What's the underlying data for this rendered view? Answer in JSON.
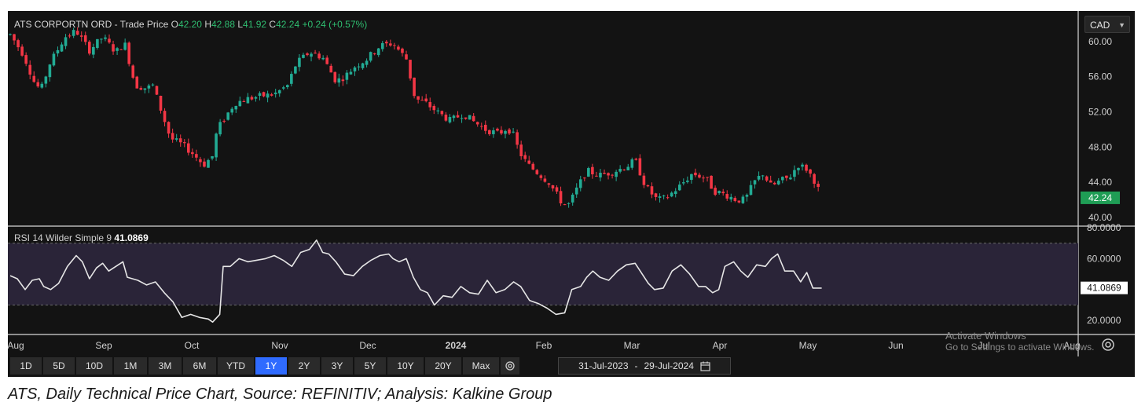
{
  "header": {
    "title": "ATS CORPORTN ORD - Trade Price",
    "o_label": "O",
    "o_value": "42.20",
    "h_label": "H",
    "h_value": "42.88",
    "l_label": "L",
    "l_value": "41.92",
    "c_label": "C",
    "c_value": "42.24",
    "change": "+0.24 (+0.57%)"
  },
  "currency": {
    "value": "CAD"
  },
  "rsi": {
    "title": "RSI 14 Wilder Simple 9",
    "value": "41.0869"
  },
  "range_buttons": [
    "1D",
    "5D",
    "10D",
    "1M",
    "3M",
    "6M",
    "YTD",
    "1Y",
    "2Y",
    "3Y",
    "5Y",
    "10Y",
    "20Y",
    "Max"
  ],
  "active_range": "1Y",
  "date_range": {
    "start": "31-Jul-2023",
    "sep": "-",
    "end": "29-Jul-2024"
  },
  "watermark": {
    "line1": "Activate Windows",
    "line2": "Go to Settings to activate Windows."
  },
  "caption": "ATS, Daily Technical Price Chart, Source: REFINITIV; Analysis: Kalkine Group",
  "colors": {
    "up": "#22ab94",
    "down": "#f23645",
    "rsi_line": "#e6e6e6",
    "rsi_band": "#2a2438",
    "active": "#2f6bff"
  },
  "chart_data": {
    "type": "candlestick",
    "price_axis": {
      "ticks": [
        "60.00",
        "56.00",
        "52.00",
        "48.00",
        "44.00",
        "40.00"
      ],
      "ylim": [
        39.2,
        61.5
      ],
      "last_price": "42.24"
    },
    "rsi_axis": {
      "ticks": [
        "80.0000",
        "60.0000",
        "20.0000"
      ],
      "ylim": [
        12,
        80
      ],
      "bands": [
        70,
        30
      ],
      "last_value": "41.0869"
    },
    "time_axis": [
      {
        "label": "Aug",
        "month": 0
      },
      {
        "label": "Sep",
        "month": 1
      },
      {
        "label": "Oct",
        "month": 2
      },
      {
        "label": "Nov",
        "month": 3
      },
      {
        "label": "Dec",
        "month": 4
      },
      {
        "label": "2024",
        "month": 5,
        "bold": true
      },
      {
        "label": "Feb",
        "month": 6
      },
      {
        "label": "Mar",
        "month": 7
      },
      {
        "label": "Apr",
        "month": 8
      },
      {
        "label": "May",
        "month": 9
      },
      {
        "label": "Jun",
        "month": 10
      },
      {
        "label": "Jul",
        "month": 11
      },
      {
        "label": "Aug",
        "month": 12
      }
    ],
    "price_path": [
      [
        0,
        60.8
      ],
      [
        0.15,
        58.5
      ],
      [
        0.28,
        55.2
      ],
      [
        0.35,
        54.5
      ],
      [
        0.45,
        57.5
      ],
      [
        0.62,
        60.5
      ],
      [
        0.75,
        61.2
      ],
      [
        0.9,
        59.0
      ],
      [
        1.05,
        60.5
      ],
      [
        1.2,
        58.8
      ],
      [
        1.3,
        59.8
      ],
      [
        1.42,
        55.0
      ],
      [
        1.55,
        54.7
      ],
      [
        1.62,
        55.0
      ],
      [
        1.72,
        52.0
      ],
      [
        1.82,
        49.0
      ],
      [
        1.95,
        48.3
      ],
      [
        2.05,
        47.5
      ],
      [
        2.2,
        46.0
      ],
      [
        2.3,
        47.0
      ],
      [
        2.35,
        50.0
      ],
      [
        2.45,
        51.5
      ],
      [
        2.55,
        53.0
      ],
      [
        2.7,
        53.5
      ],
      [
        2.85,
        53.8
      ],
      [
        3.0,
        54.0
      ],
      [
        3.15,
        55.0
      ],
      [
        3.25,
        57.5
      ],
      [
        3.4,
        58.8
      ],
      [
        3.55,
        58.2
      ],
      [
        3.7,
        55.5
      ],
      [
        3.8,
        56.0
      ],
      [
        3.92,
        57.2
      ],
      [
        4.05,
        58.0
      ],
      [
        4.2,
        59.5
      ],
      [
        4.35,
        59.8
      ],
      [
        4.5,
        58.0
      ],
      [
        4.6,
        53.5
      ],
      [
        4.72,
        53.0
      ],
      [
        4.85,
        52.0
      ],
      [
        5.0,
        51.0
      ],
      [
        5.15,
        51.8
      ],
      [
        5.25,
        51.0
      ],
      [
        5.4,
        50.0
      ],
      [
        5.55,
        49.5
      ],
      [
        5.65,
        50.2
      ],
      [
        5.72,
        49.3
      ],
      [
        5.78,
        47.5
      ],
      [
        5.88,
        46.0
      ],
      [
        6.0,
        45.0
      ],
      [
        6.12,
        44.0
      ],
      [
        6.28,
        41.5
      ],
      [
        6.35,
        41.5
      ],
      [
        6.45,
        43.5
      ],
      [
        6.55,
        45.3
      ],
      [
        6.7,
        44.8
      ],
      [
        6.85,
        45.2
      ],
      [
        7.0,
        45.8
      ],
      [
        7.1,
        46.5
      ],
      [
        7.22,
        43.5
      ],
      [
        7.35,
        42.0
      ],
      [
        7.45,
        42.2
      ],
      [
        7.6,
        43.5
      ],
      [
        7.75,
        45.0
      ],
      [
        7.9,
        44.5
      ],
      [
        8.0,
        43.0
      ],
      [
        8.15,
        42.5
      ],
      [
        8.25,
        42.0
      ],
      [
        8.35,
        42.0
      ],
      [
        8.45,
        44.0
      ],
      [
        8.55,
        45.0
      ],
      [
        8.65,
        43.5
      ],
      [
        8.75,
        44.2
      ],
      [
        8.85,
        44.5
      ],
      [
        8.95,
        46.0
      ],
      [
        9.05,
        45.5
      ],
      [
        9.15,
        44.0
      ],
      [
        9.22,
        42.2
      ]
    ],
    "rsi_path": [
      [
        0,
        49
      ],
      [
        0.08,
        47
      ],
      [
        0.17,
        40
      ],
      [
        0.25,
        46
      ],
      [
        0.33,
        47
      ],
      [
        0.38,
        42
      ],
      [
        0.46,
        40
      ],
      [
        0.55,
        44
      ],
      [
        0.65,
        55
      ],
      [
        0.75,
        62
      ],
      [
        0.82,
        58
      ],
      [
        0.9,
        47
      ],
      [
        0.98,
        54
      ],
      [
        1.05,
        57
      ],
      [
        1.12,
        52
      ],
      [
        1.2,
        55
      ],
      [
        1.28,
        58
      ],
      [
        1.33,
        48
      ],
      [
        1.45,
        46
      ],
      [
        1.55,
        43
      ],
      [
        1.65,
        45
      ],
      [
        1.75,
        38
      ],
      [
        1.85,
        32
      ],
      [
        1.95,
        22
      ],
      [
        2.05,
        24
      ],
      [
        2.15,
        22
      ],
      [
        2.25,
        21
      ],
      [
        2.3,
        19
      ],
      [
        2.38,
        24
      ],
      [
        2.42,
        55
      ],
      [
        2.5,
        55
      ],
      [
        2.6,
        60
      ],
      [
        2.7,
        58
      ],
      [
        2.8,
        59
      ],
      [
        2.9,
        60
      ],
      [
        3.0,
        62
      ],
      [
        3.1,
        59
      ],
      [
        3.2,
        55
      ],
      [
        3.3,
        64
      ],
      [
        3.4,
        66
      ],
      [
        3.48,
        72
      ],
      [
        3.55,
        64
      ],
      [
        3.62,
        63
      ],
      [
        3.7,
        58
      ],
      [
        3.8,
        50
      ],
      [
        3.9,
        49
      ],
      [
        4.0,
        55
      ],
      [
        4.1,
        59
      ],
      [
        4.2,
        62
      ],
      [
        4.3,
        63
      ],
      [
        4.35,
        60
      ],
      [
        4.42,
        58
      ],
      [
        4.5,
        60
      ],
      [
        4.58,
        48
      ],
      [
        4.66,
        40
      ],
      [
        4.74,
        38
      ],
      [
        4.82,
        30
      ],
      [
        4.92,
        36
      ],
      [
        5.02,
        35
      ],
      [
        5.12,
        42
      ],
      [
        5.22,
        38
      ],
      [
        5.32,
        37
      ],
      [
        5.42,
        46
      ],
      [
        5.52,
        38
      ],
      [
        5.62,
        40
      ],
      [
        5.72,
        45
      ],
      [
        5.8,
        42
      ],
      [
        5.9,
        33
      ],
      [
        6.0,
        31
      ],
      [
        6.1,
        28
      ],
      [
        6.2,
        24
      ],
      [
        6.3,
        25
      ],
      [
        6.38,
        40
      ],
      [
        6.48,
        42
      ],
      [
        6.55,
        48
      ],
      [
        6.62,
        52
      ],
      [
        6.7,
        48
      ],
      [
        6.8,
        46
      ],
      [
        6.9,
        52
      ],
      [
        7.0,
        56
      ],
      [
        7.1,
        57
      ],
      [
        7.18,
        50
      ],
      [
        7.25,
        44
      ],
      [
        7.32,
        40
      ],
      [
        7.42,
        41
      ],
      [
        7.52,
        52
      ],
      [
        7.62,
        56
      ],
      [
        7.72,
        50
      ],
      [
        7.82,
        42
      ],
      [
        7.9,
        42
      ],
      [
        7.98,
        38
      ],
      [
        8.05,
        40
      ],
      [
        8.12,
        55
      ],
      [
        8.22,
        58
      ],
      [
        8.3,
        52
      ],
      [
        8.38,
        48
      ],
      [
        8.48,
        56
      ],
      [
        8.58,
        55
      ],
      [
        8.65,
        60
      ],
      [
        8.72,
        63
      ],
      [
        8.8,
        52
      ],
      [
        8.9,
        52
      ],
      [
        8.98,
        45
      ],
      [
        9.05,
        51
      ],
      [
        9.12,
        41
      ],
      [
        9.22,
        41
      ]
    ]
  }
}
